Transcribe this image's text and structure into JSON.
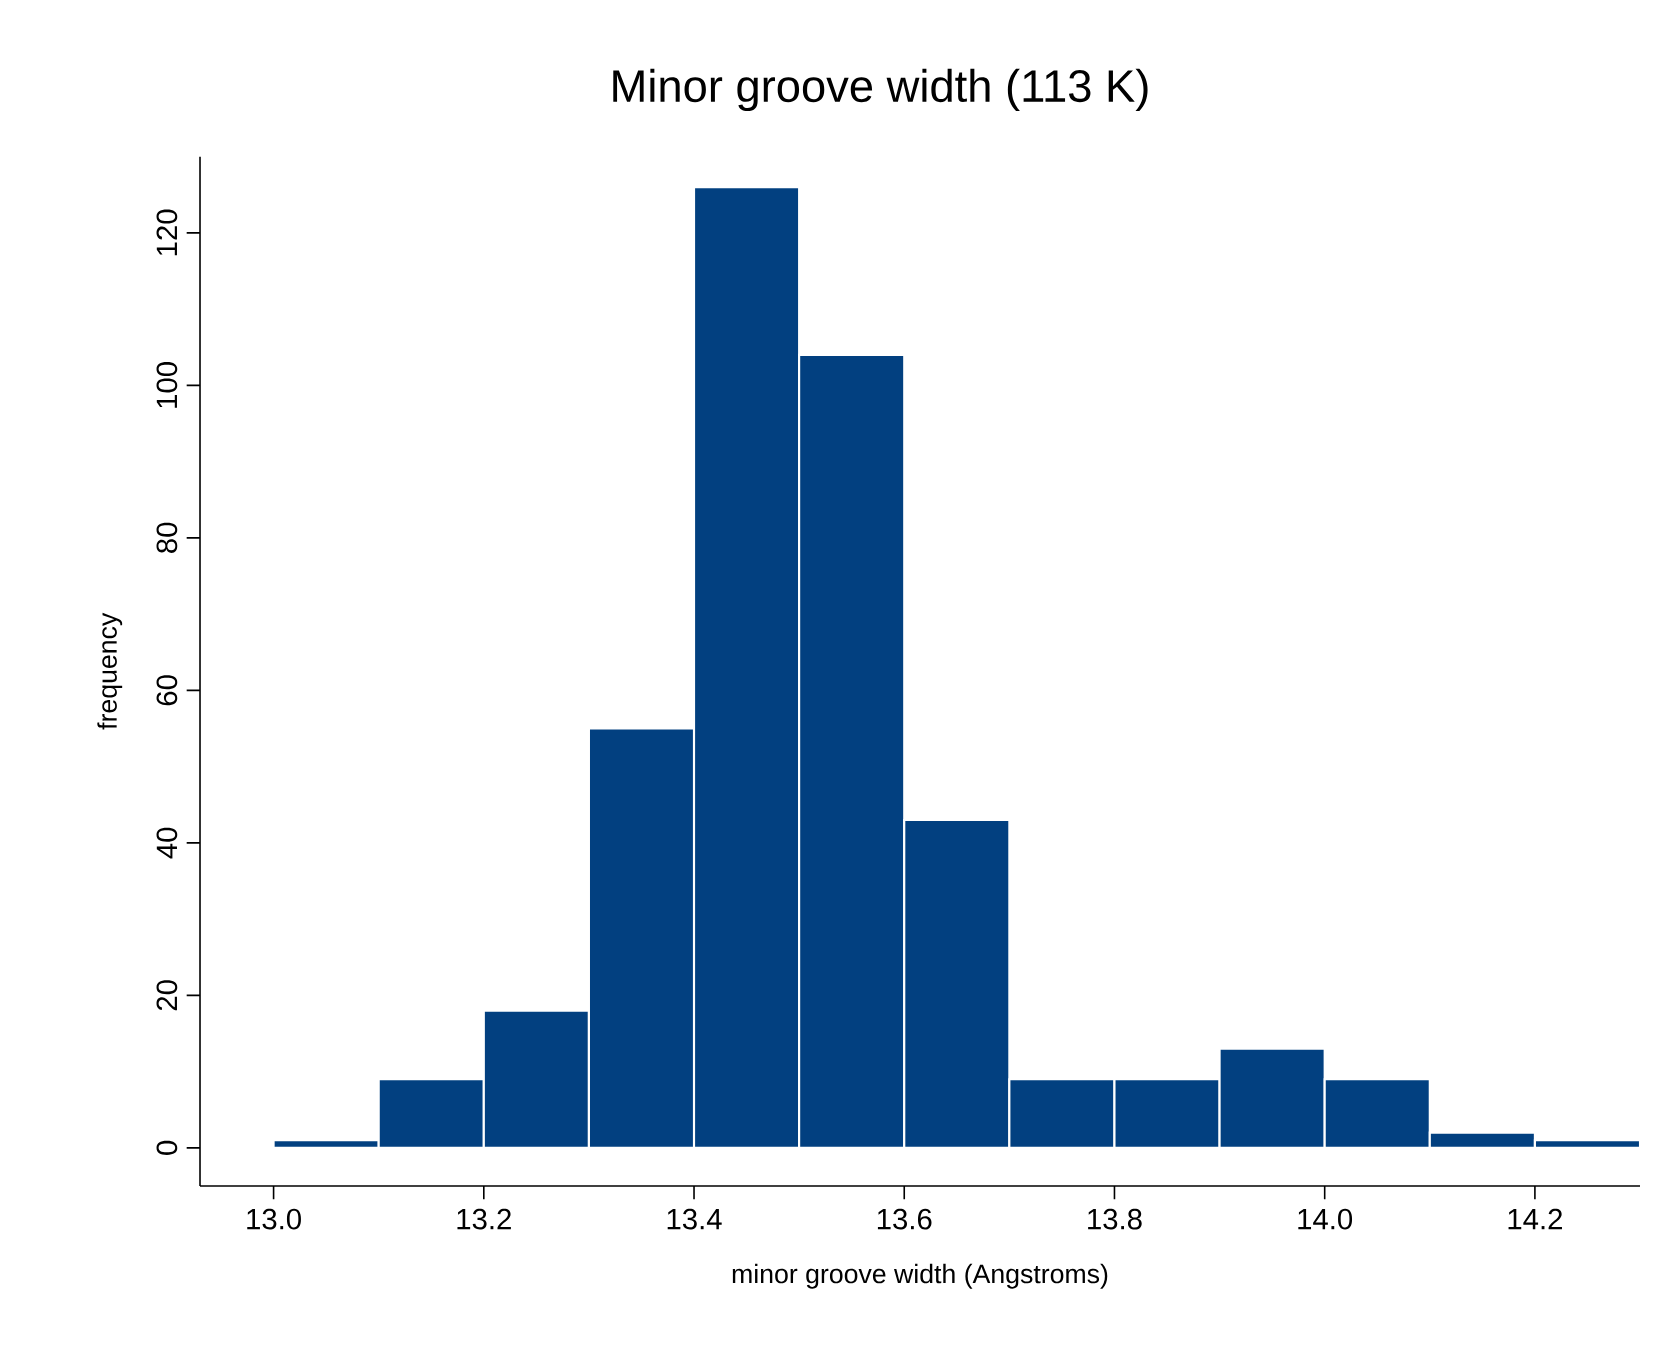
{
  "chart_data": {
    "type": "histogram",
    "title": "Minor groove width (113 K)",
    "xlabel": "minor groove width (Angstroms)",
    "ylabel": "frequency",
    "bins": [
      13.0,
      13.1,
      13.2,
      13.3,
      13.4,
      13.5,
      13.6,
      13.7,
      13.8,
      13.9,
      14.0,
      14.1,
      14.2,
      14.3
    ],
    "values": [
      1,
      9,
      18,
      55,
      126,
      104,
      43,
      9,
      9,
      13,
      9,
      2,
      1
    ],
    "color": "#024080",
    "xlim": [
      12.93,
      14.3
    ],
    "ylim": [
      -5,
      130
    ],
    "xticks": [
      {
        "value": 13.0,
        "label": "13.0"
      },
      {
        "value": 13.2,
        "label": "13.2"
      },
      {
        "value": 13.4,
        "label": "13.4"
      },
      {
        "value": 13.6,
        "label": "13.6"
      },
      {
        "value": 13.8,
        "label": "13.8"
      },
      {
        "value": 14.0,
        "label": "14.0"
      },
      {
        "value": 14.2,
        "label": "14.2"
      }
    ],
    "yticks": [
      0,
      20,
      40,
      60,
      80,
      100,
      120
    ]
  }
}
